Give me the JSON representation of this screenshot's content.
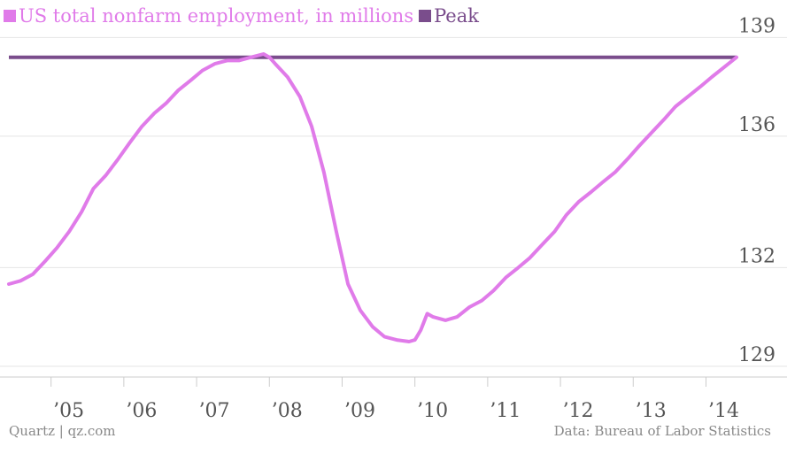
{
  "chart_data": {
    "type": "line",
    "title": "",
    "xlabel": "",
    "ylabel": "",
    "legend_position": "top-left",
    "grid": true,
    "xlim": [
      2004.42,
      2014.42
    ],
    "ylim": [
      128.7,
      139.2
    ],
    "y_ticks": [
      {
        "value": 129,
        "label": "129"
      },
      {
        "value": 132,
        "label": "132"
      },
      {
        "value": 136,
        "label": "136"
      },
      {
        "value": 139,
        "label": "139"
      }
    ],
    "x_ticks": [
      {
        "value": 2005,
        "label": "’05"
      },
      {
        "value": 2006,
        "label": "’06"
      },
      {
        "value": 2007,
        "label": "’07"
      },
      {
        "value": 2008,
        "label": "’08"
      },
      {
        "value": 2009,
        "label": "’09"
      },
      {
        "value": 2010,
        "label": "’10"
      },
      {
        "value": 2011,
        "label": "’11"
      },
      {
        "value": 2012,
        "label": "’12"
      },
      {
        "value": 2013,
        "label": "’13"
      },
      {
        "value": 2014,
        "label": "’14"
      }
    ],
    "series": [
      {
        "name": "US total nonfarm employment, in millions",
        "color": "#e07be9",
        "x": [
          2004.42,
          2004.58,
          2004.75,
          2004.92,
          2005.08,
          2005.25,
          2005.42,
          2005.58,
          2005.75,
          2005.92,
          2006.08,
          2006.25,
          2006.42,
          2006.58,
          2006.75,
          2006.92,
          2007.08,
          2007.25,
          2007.42,
          2007.58,
          2007.75,
          2007.92,
          2008.0,
          2008.08,
          2008.25,
          2008.42,
          2008.58,
          2008.75,
          2008.92,
          2009.08,
          2009.25,
          2009.42,
          2009.58,
          2009.75,
          2009.92,
          2010.0,
          2010.08,
          2010.17,
          2010.25,
          2010.42,
          2010.58,
          2010.75,
          2010.92,
          2011.08,
          2011.25,
          2011.42,
          2011.58,
          2011.75,
          2011.92,
          2012.08,
          2012.25,
          2012.42,
          2012.58,
          2012.75,
          2012.92,
          2013.08,
          2013.25,
          2013.42,
          2013.58,
          2013.75,
          2013.92,
          2014.08,
          2014.25,
          2014.42
        ],
        "values": [
          131.5,
          131.6,
          131.8,
          132.2,
          132.6,
          133.1,
          133.7,
          134.4,
          134.8,
          135.3,
          135.8,
          136.3,
          136.7,
          137.0,
          137.4,
          137.7,
          138.0,
          138.2,
          138.3,
          138.3,
          138.4,
          138.5,
          138.4,
          138.2,
          137.8,
          137.2,
          136.3,
          134.9,
          133.1,
          131.5,
          130.7,
          130.2,
          129.9,
          129.8,
          129.75,
          129.8,
          130.1,
          130.6,
          130.5,
          130.4,
          130.5,
          130.8,
          131.0,
          131.3,
          131.7,
          132.0,
          132.3,
          132.7,
          133.1,
          133.6,
          134.0,
          134.3,
          134.6,
          134.9,
          135.3,
          135.7,
          136.1,
          136.5,
          136.9,
          137.2,
          137.5,
          137.8,
          138.1,
          138.4
        ]
      },
      {
        "name": "Peak",
        "color": "#7a4d8c",
        "x": [
          2004.42,
          2014.42
        ],
        "values": [
          138.4,
          138.4
        ]
      }
    ]
  },
  "footer": {
    "source_left": "Quartz | qz.com",
    "source_right": "Data: Bureau of Labor Statistics"
  }
}
